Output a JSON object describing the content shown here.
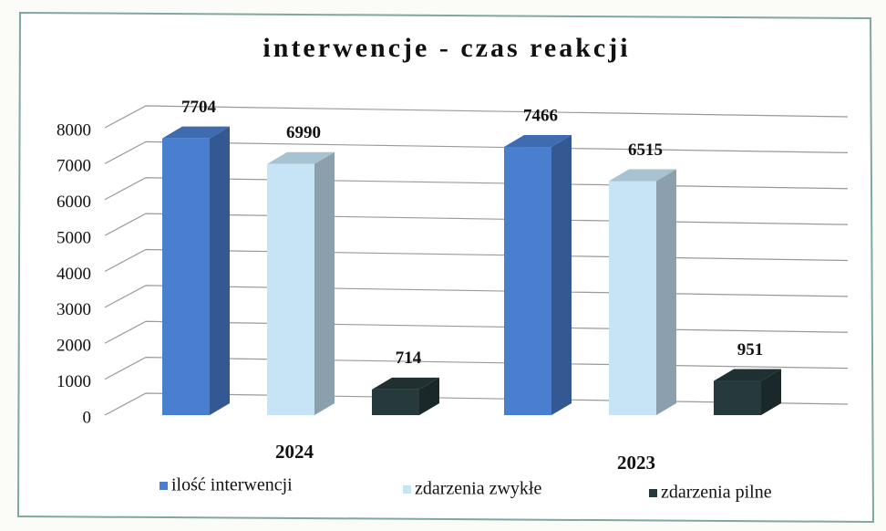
{
  "chart_data": {
    "type": "bar3d",
    "title": "interwencje - czas reakcji",
    "categories": [
      "2024",
      "2023"
    ],
    "series": [
      {
        "name": "ilość interwencji",
        "color": "#4a7fd0",
        "values": [
          7704,
          7466
        ]
      },
      {
        "name": "zdarzenia zwykłe",
        "color": "#c6e4f6",
        "values": [
          6990,
          6515
        ]
      },
      {
        "name": "zdarzenia pilne",
        "color": "#26393b",
        "values": [
          714,
          951
        ]
      }
    ],
    "ylim": [
      0,
      8000
    ],
    "yticks": [
      0,
      1000,
      2000,
      3000,
      4000,
      5000,
      6000,
      7000,
      8000
    ],
    "grid": true
  }
}
